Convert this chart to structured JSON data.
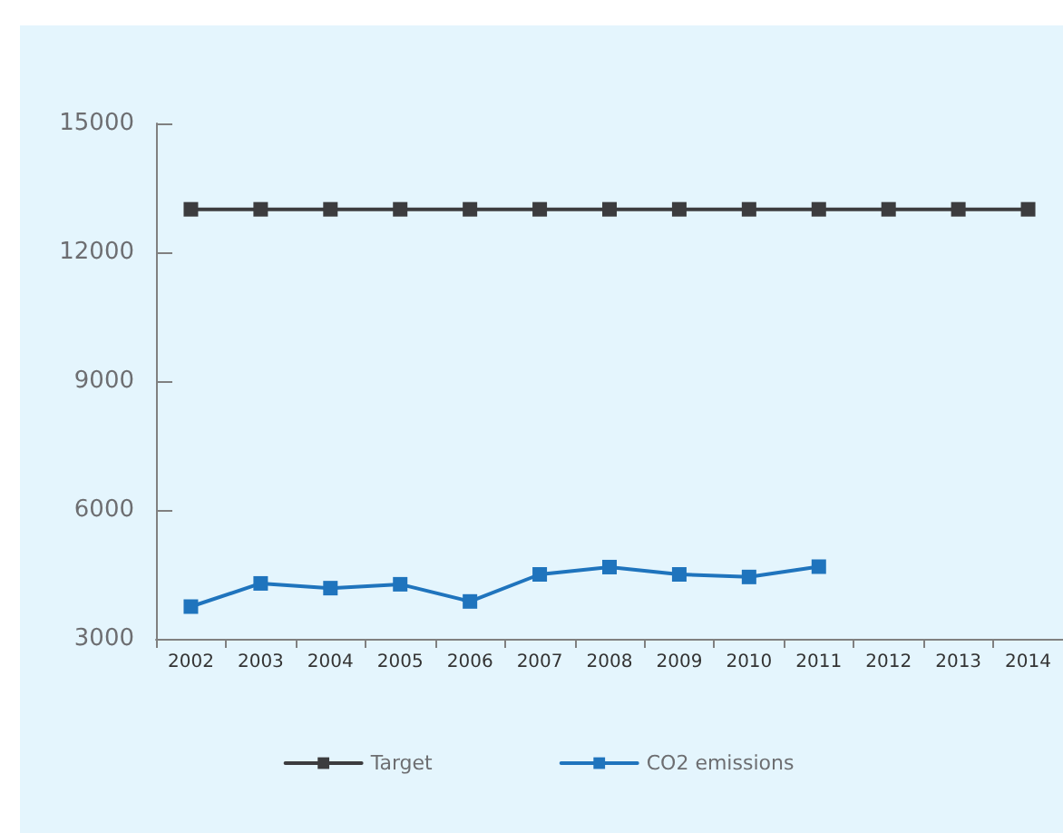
{
  "chart_data": {
    "type": "line",
    "categories": [
      "2002",
      "2003",
      "2004",
      "2005",
      "2006",
      "2007",
      "2008",
      "2009",
      "2010",
      "2011",
      "2012",
      "2013",
      "2014"
    ],
    "series": [
      {
        "name": "Target",
        "color": "#3c3c3e",
        "values": [
          13000,
          13000,
          13000,
          13000,
          13000,
          13000,
          13000,
          13000,
          13000,
          13000,
          13000,
          13000,
          13000
        ]
      },
      {
        "name": "CO2 emissions",
        "color": "#1f74bd",
        "values": [
          3750,
          4290,
          4180,
          4270,
          3870,
          4500,
          4670,
          4500,
          4440,
          4680,
          null,
          null,
          null
        ]
      }
    ],
    "ylim": [
      3000,
      15000
    ],
    "yticks": [
      3000,
      6000,
      9000,
      12000,
      15000
    ],
    "grid": false,
    "legend": "bottom",
    "marker": "square",
    "line_style": "solid"
  }
}
